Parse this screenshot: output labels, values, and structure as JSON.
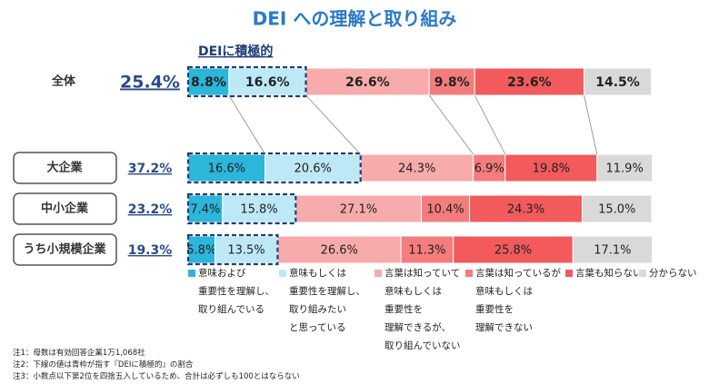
{
  "chart_data": {
    "type": "bar",
    "orientation": "horizontal",
    "stacked": true,
    "title": "DEI への理解と取り組み",
    "subtitle": "DEIに積極的",
    "categories": [
      "全体",
      "大企業",
      "中小企業",
      "うち小規模企業"
    ],
    "xlim": [
      0,
      100
    ],
    "series": [
      {
        "name": "意味および\n重要性を理解し、\n取り組んでいる",
        "color": "#2bb6da",
        "values": [
          8.8,
          16.6,
          7.4,
          5.8
        ],
        "value_labels": [
          "8.8%",
          "16.6%",
          "7.4%",
          "5.8%"
        ]
      },
      {
        "name": "意味もしくは\n重要性を理解し、\n取り組みたい\nと思っている",
        "color": "#bce9f5",
        "values": [
          16.6,
          20.6,
          15.8,
          13.5
        ],
        "value_labels": [
          "16.6%",
          "20.6%",
          "15.8%",
          "13.5%"
        ]
      },
      {
        "name": "言葉は知っていて\n意味もしくは\n重要性を\n理解できるが、\n取り組んでいない",
        "color": "#f7abab",
        "values": [
          26.6,
          24.3,
          27.1,
          26.6
        ],
        "value_labels": [
          "26.6%",
          "24.3%",
          "27.1%",
          "26.6%"
        ]
      },
      {
        "name": "言葉は知っているが\n意味もしくは\n重要性を\n理解できない",
        "color": "#f47c7c",
        "values": [
          9.8,
          6.9,
          10.4,
          11.3
        ],
        "value_labels": [
          "9.8%",
          "6.9%",
          "10.4%",
          "11.3%"
        ]
      },
      {
        "name": "言葉も知らない",
        "color": "#f25a5c",
        "values": [
          23.6,
          19.8,
          24.3,
          25.8
        ],
        "value_labels": [
          "23.6%",
          "19.8%",
          "24.3%",
          "25.8%"
        ]
      },
      {
        "name": "分からない",
        "color": "#d9d9d9",
        "values": [
          14.5,
          11.9,
          15.0,
          17.1
        ],
        "value_labels": [
          "14.5%",
          "11.9%",
          "15.0%",
          "17.1%"
        ]
      }
    ],
    "dei_positive": {
      "values": [
        25.4,
        37.2,
        23.2,
        19.3
      ],
      "value_labels": [
        "25.4%",
        "37.2%",
        "23.2%",
        "19.3%"
      ]
    },
    "notes": [
      "注1：母数は有効回答企業1万1,068社",
      "注2：下線の値は青枠が指す『DEIに積極的』の割合",
      "注3：小数点以下第2位を四捨五入しているため、合計は必ずしも100とはならない"
    ]
  }
}
